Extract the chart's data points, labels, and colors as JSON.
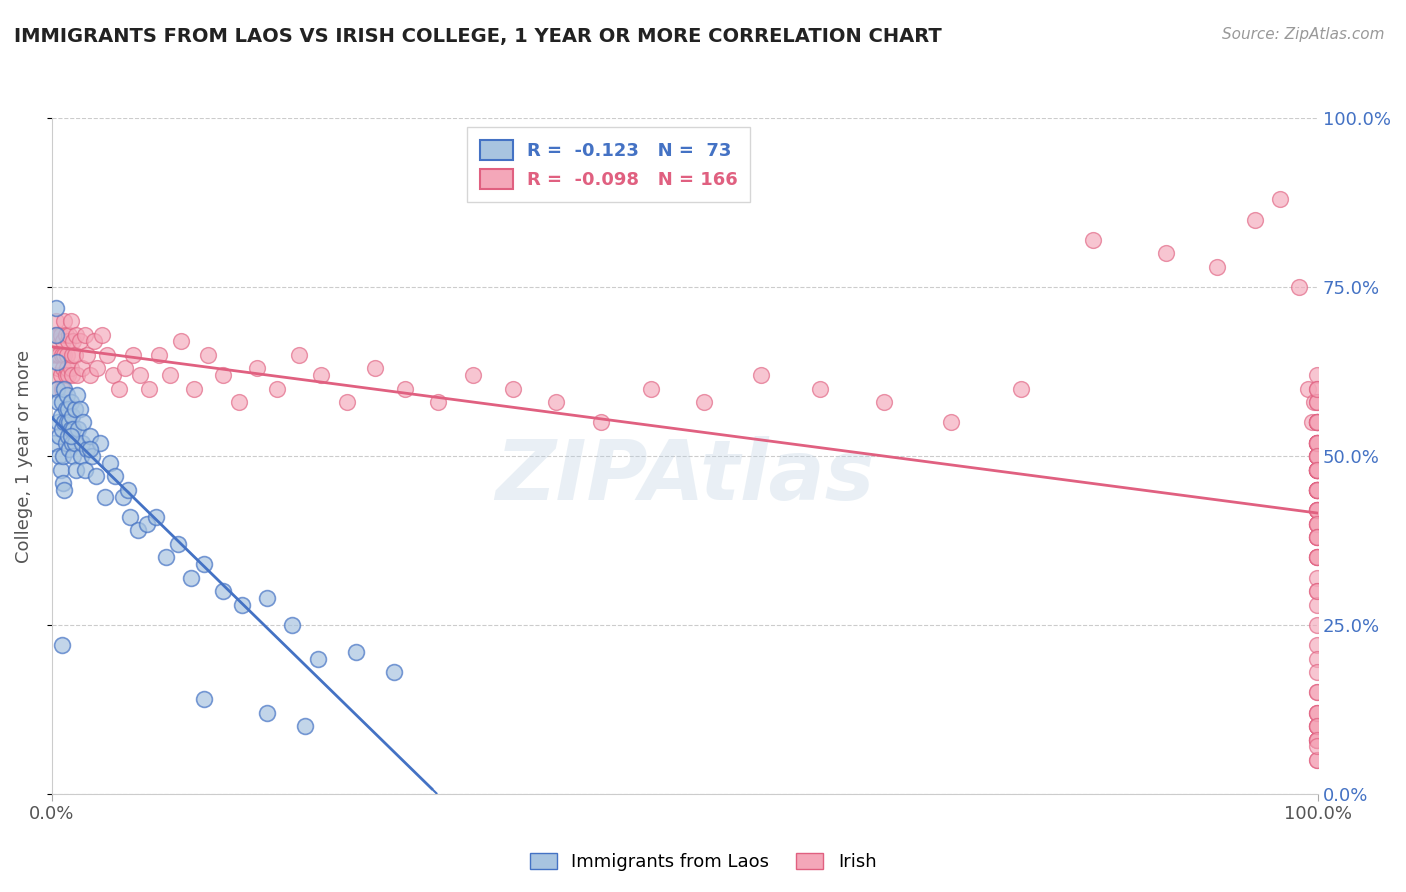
{
  "title": "IMMIGRANTS FROM LAOS VS IRISH COLLEGE, 1 YEAR OR MORE CORRELATION CHART",
  "source_text": "Source: ZipAtlas.com",
  "ylabel": "College, 1 year or more",
  "xlim": [
    0.0,
    1.0
  ],
  "ylim": [
    0.0,
    1.0
  ],
  "xtick_labels": [
    "0.0%",
    "100.0%"
  ],
  "ytick_labels": [
    "0.0%",
    "25.0%",
    "50.0%",
    "75.0%",
    "100.0%"
  ],
  "ytick_positions": [
    0.0,
    0.25,
    0.5,
    0.75,
    1.0
  ],
  "legend_r1": "-0.123",
  "legend_n1": "73",
  "legend_r2": "-0.098",
  "legend_n2": "166",
  "color_blue": "#a8c4e0",
  "color_pink": "#f4a7b9",
  "color_line_blue": "#4472c4",
  "color_line_pink": "#e06080",
  "color_text_blue": "#4472c4",
  "color_text_pink": "#e06080",
  "background_color": "#ffffff",
  "grid_color": "#cccccc",
  "laos_x": [
    0.002,
    0.003,
    0.003,
    0.004,
    0.004,
    0.005,
    0.005,
    0.006,
    0.006,
    0.007,
    0.007,
    0.008,
    0.008,
    0.009,
    0.009,
    0.01,
    0.01,
    0.011,
    0.011,
    0.012,
    0.012,
    0.013,
    0.013,
    0.014,
    0.014,
    0.015,
    0.015,
    0.016,
    0.016,
    0.017,
    0.017,
    0.018,
    0.018,
    0.019,
    0.02,
    0.021,
    0.022,
    0.023,
    0.024,
    0.025,
    0.026,
    0.028,
    0.03,
    0.032,
    0.035,
    0.038,
    0.042,
    0.046,
    0.05,
    0.056,
    0.062,
    0.068,
    0.075,
    0.082,
    0.09,
    0.1,
    0.11,
    0.12,
    0.135,
    0.15,
    0.17,
    0.19,
    0.21,
    0.24,
    0.27,
    0.17,
    0.2,
    0.12,
    0.06,
    0.03,
    0.015,
    0.01,
    0.008
  ],
  "laos_y": [
    0.52,
    0.72,
    0.68,
    0.6,
    0.64,
    0.55,
    0.58,
    0.5,
    0.53,
    0.48,
    0.56,
    0.54,
    0.58,
    0.46,
    0.5,
    0.6,
    0.55,
    0.57,
    0.52,
    0.59,
    0.55,
    0.53,
    0.57,
    0.51,
    0.55,
    0.54,
    0.58,
    0.52,
    0.56,
    0.5,
    0.54,
    0.57,
    0.52,
    0.48,
    0.59,
    0.54,
    0.57,
    0.5,
    0.52,
    0.55,
    0.48,
    0.51,
    0.53,
    0.5,
    0.47,
    0.52,
    0.44,
    0.49,
    0.47,
    0.44,
    0.41,
    0.39,
    0.4,
    0.41,
    0.35,
    0.37,
    0.32,
    0.34,
    0.3,
    0.28,
    0.29,
    0.25,
    0.2,
    0.21,
    0.18,
    0.12,
    0.1,
    0.14,
    0.45,
    0.51,
    0.53,
    0.45,
    0.22
  ],
  "irish_x": [
    0.001,
    0.002,
    0.003,
    0.003,
    0.004,
    0.004,
    0.005,
    0.005,
    0.006,
    0.006,
    0.007,
    0.007,
    0.008,
    0.008,
    0.009,
    0.009,
    0.01,
    0.01,
    0.011,
    0.011,
    0.012,
    0.012,
    0.013,
    0.013,
    0.014,
    0.015,
    0.015,
    0.016,
    0.016,
    0.017,
    0.018,
    0.019,
    0.02,
    0.022,
    0.024,
    0.026,
    0.028,
    0.03,
    0.033,
    0.036,
    0.04,
    0.044,
    0.048,
    0.053,
    0.058,
    0.064,
    0.07,
    0.077,
    0.085,
    0.093,
    0.102,
    0.112,
    0.123,
    0.135,
    0.148,
    0.162,
    0.178,
    0.195,
    0.213,
    0.233,
    0.255,
    0.279,
    0.305,
    0.333,
    0.364,
    0.398,
    0.434,
    0.473,
    0.515,
    0.56,
    0.607,
    0.657,
    0.71,
    0.765,
    0.822,
    0.88,
    0.92,
    0.95,
    0.97,
    0.985,
    0.992,
    0.995,
    0.997,
    0.999,
    0.999,
    0.999,
    0.999,
    0.999,
    0.999,
    0.999,
    0.999,
    0.999,
    0.999,
    0.999,
    0.999,
    0.999,
    0.999,
    0.999,
    0.999,
    0.999,
    0.999,
    0.999,
    0.999,
    0.999,
    0.999,
    0.999,
    0.999,
    0.999,
    0.999,
    0.999,
    0.999,
    0.999,
    0.999,
    0.999,
    0.999,
    0.999,
    0.999,
    0.999,
    0.999,
    0.999,
    0.999,
    0.999,
    0.999,
    0.999,
    0.999,
    0.999,
    0.999,
    0.999,
    0.999,
    0.999,
    0.999,
    0.999,
    0.999,
    0.999,
    0.999,
    0.999,
    0.999,
    0.999,
    0.999,
    0.999,
    0.999,
    0.999,
    0.999,
    0.999,
    0.999,
    0.999,
    0.999,
    0.999,
    0.999,
    0.999,
    0.999,
    0.999,
    0.999,
    0.999,
    0.999,
    0.999,
    0.999,
    0.999,
    0.999,
    0.999,
    0.999,
    0.999,
    0.999,
    0.999,
    0.999,
    0.999
  ],
  "irish_y": [
    0.65,
    0.68,
    0.62,
    0.7,
    0.65,
    0.6,
    0.67,
    0.63,
    0.68,
    0.65,
    0.62,
    0.68,
    0.65,
    0.6,
    0.63,
    0.67,
    0.7,
    0.65,
    0.62,
    0.68,
    0.65,
    0.63,
    0.67,
    0.62,
    0.68,
    0.63,
    0.7,
    0.65,
    0.62,
    0.67,
    0.65,
    0.68,
    0.62,
    0.67,
    0.63,
    0.68,
    0.65,
    0.62,
    0.67,
    0.63,
    0.68,
    0.65,
    0.62,
    0.6,
    0.63,
    0.65,
    0.62,
    0.6,
    0.65,
    0.62,
    0.67,
    0.6,
    0.65,
    0.62,
    0.58,
    0.63,
    0.6,
    0.65,
    0.62,
    0.58,
    0.63,
    0.6,
    0.58,
    0.62,
    0.6,
    0.58,
    0.55,
    0.6,
    0.58,
    0.62,
    0.6,
    0.58,
    0.55,
    0.6,
    0.82,
    0.8,
    0.78,
    0.85,
    0.88,
    0.75,
    0.6,
    0.55,
    0.58,
    0.62,
    0.5,
    0.52,
    0.55,
    0.48,
    0.55,
    0.58,
    0.6,
    0.52,
    0.55,
    0.48,
    0.5,
    0.52,
    0.55,
    0.58,
    0.6,
    0.48,
    0.5,
    0.52,
    0.55,
    0.45,
    0.48,
    0.5,
    0.52,
    0.55,
    0.45,
    0.48,
    0.5,
    0.52,
    0.45,
    0.48,
    0.5,
    0.52,
    0.45,
    0.48,
    0.5,
    0.45,
    0.48,
    0.42,
    0.45,
    0.48,
    0.42,
    0.45,
    0.4,
    0.42,
    0.45,
    0.4,
    0.42,
    0.38,
    0.4,
    0.42,
    0.35,
    0.38,
    0.4,
    0.35,
    0.38,
    0.32,
    0.35,
    0.38,
    0.3,
    0.35,
    0.28,
    0.3,
    0.25,
    0.22,
    0.2,
    0.18,
    0.15,
    0.12,
    0.1,
    0.08,
    0.12,
    0.1,
    0.08,
    0.05,
    0.08,
    0.1,
    0.12,
    0.15,
    0.1,
    0.08,
    0.05,
    0.07
  ]
}
